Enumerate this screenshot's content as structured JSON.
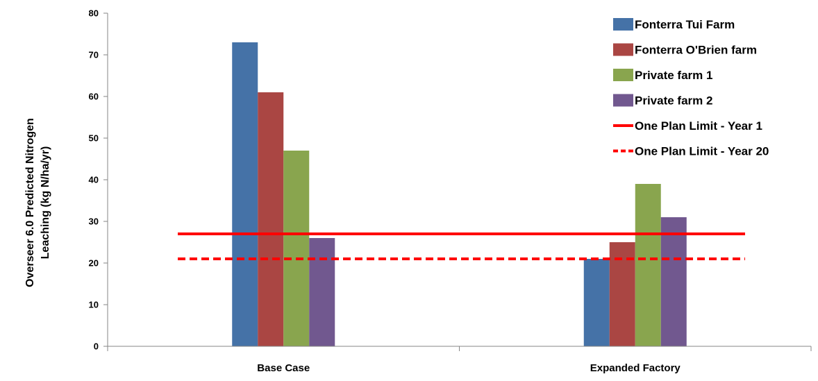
{
  "chart_data": {
    "type": "bar",
    "title": "",
    "categories": [
      "Base Case",
      "Expanded Factory"
    ],
    "ylabel_lines": [
      "Overseer 6.0   Predicted  Nitrogen",
      "Leaching  (kg N/ha/yr)"
    ],
    "xlabel": "",
    "ylim": [
      0,
      80
    ],
    "yticks": [
      0,
      10,
      20,
      30,
      40,
      50,
      60,
      70,
      80
    ],
    "grid": false,
    "legend_position": "top-right",
    "series": [
      {
        "name": "Fonterra Tui Farm",
        "color": "#4572a7",
        "values": [
          73,
          21
        ]
      },
      {
        "name": "Fonterra O'Brien farm",
        "color": "#aa4643",
        "values": [
          61,
          25
        ]
      },
      {
        "name": "Private farm 1",
        "color": "#89a54e",
        "values": [
          47,
          39
        ]
      },
      {
        "name": "Private farm 2",
        "color": "#71588f",
        "values": [
          26,
          31
        ]
      }
    ],
    "reference_lines": [
      {
        "name": "One Plan Limit - Year 1",
        "value": 27,
        "color": "#ff0000",
        "style": "solid"
      },
      {
        "name": "One Plan Limit - Year 20",
        "value": 21,
        "color": "#ff0000",
        "style": "dashed"
      }
    ]
  }
}
